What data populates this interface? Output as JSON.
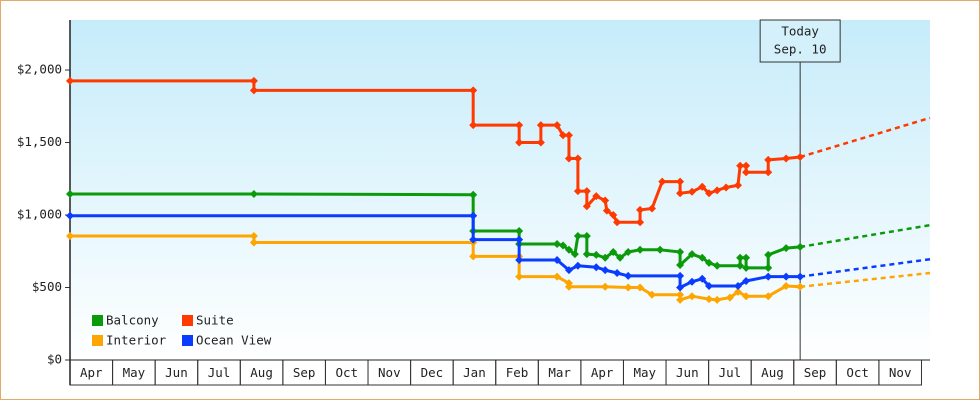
{
  "chart_data": {
    "type": "line",
    "step": true,
    "xlim": [
      0,
      20.2
    ],
    "ylim": [
      0,
      2345
    ],
    "yticks": [
      {
        "value": 0,
        "label": "$0"
      },
      {
        "value": 500,
        "label": "$500"
      },
      {
        "value": 1000,
        "label": "$1,000"
      },
      {
        "value": 1500,
        "label": "$1,500"
      },
      {
        "value": 2000,
        "label": "$2,000"
      }
    ],
    "xticks": [
      {
        "value": 0.5,
        "label": "Apr"
      },
      {
        "value": 1.5,
        "label": "May"
      },
      {
        "value": 2.5,
        "label": "Jun"
      },
      {
        "value": 3.5,
        "label": "Jul"
      },
      {
        "value": 4.5,
        "label": "Aug"
      },
      {
        "value": 5.5,
        "label": "Sep"
      },
      {
        "value": 6.5,
        "label": "Oct"
      },
      {
        "value": 7.5,
        "label": "Nov"
      },
      {
        "value": 8.5,
        "label": "Dec"
      },
      {
        "value": 9.5,
        "label": "Jan"
      },
      {
        "value": 10.5,
        "label": "Feb"
      },
      {
        "value": 11.5,
        "label": "Mar"
      },
      {
        "value": 12.5,
        "label": "Apr"
      },
      {
        "value": 13.5,
        "label": "May"
      },
      {
        "value": 14.5,
        "label": "Jun"
      },
      {
        "value": 15.5,
        "label": "Jul"
      },
      {
        "value": 16.5,
        "label": "Aug"
      },
      {
        "value": 17.5,
        "label": "Sep"
      },
      {
        "value": 18.5,
        "label": "Oct"
      },
      {
        "value": 19.5,
        "label": "Nov"
      }
    ],
    "annotation": {
      "x": 17.15,
      "lines": [
        "Today",
        "Sep. 10"
      ]
    },
    "legend": "bottom-left",
    "series": [
      {
        "name": "Balcony",
        "color": "#0a9a0a",
        "x": [
          0,
          4.32,
          9.47,
          9.47,
          10.55,
          10.55,
          11.44,
          11.58,
          11.72,
          11.86,
          11.93,
          12.14,
          12.14,
          12.36,
          12.57,
          12.76,
          12.92,
          13.11,
          13.39,
          13.86,
          14.33,
          14.33,
          14.61,
          14.85,
          15.01,
          15.2,
          15.74,
          15.74,
          15.88,
          15.88,
          16.4,
          16.4,
          16.82,
          17.15
        ],
        "values": [
          1145,
          1145,
          1140,
          890,
          890,
          800,
          800,
          790,
          760,
          730,
          855,
          855,
          730,
          725,
          705,
          745,
          705,
          745,
          760,
          760,
          745,
          655,
          730,
          705,
          670,
          650,
          650,
          705,
          705,
          635,
          635,
          725,
          772,
          780
        ],
        "forecast_x": [
          17.15,
          20.2
        ],
        "forecast_values": [
          780,
          930
        ]
      },
      {
        "name": "Suite",
        "color": "#ff3a00",
        "x": [
          0,
          4.32,
          4.32,
          9.47,
          9.47,
          10.55,
          10.55,
          11.06,
          11.06,
          11.44,
          11.58,
          11.72,
          11.72,
          11.93,
          11.93,
          12.14,
          12.14,
          12.36,
          12.57,
          12.61,
          12.76,
          12.85,
          13.39,
          13.39,
          13.67,
          13.91,
          14.33,
          14.33,
          14.61,
          14.85,
          15.01,
          15.2,
          15.41,
          15.69,
          15.74,
          15.88,
          15.88,
          16.4,
          16.4,
          16.82,
          17.15
        ],
        "values": [
          1925,
          1925,
          1860,
          1860,
          1620,
          1620,
          1500,
          1500,
          1620,
          1620,
          1550,
          1550,
          1390,
          1390,
          1165,
          1165,
          1060,
          1130,
          1100,
          1030,
          1000,
          950,
          950,
          1035,
          1045,
          1230,
          1230,
          1150,
          1160,
          1195,
          1150,
          1170,
          1190,
          1205,
          1340,
          1340,
          1295,
          1295,
          1380,
          1390,
          1400
        ],
        "forecast_x": [
          17.15,
          20.2
        ],
        "forecast_values": [
          1400,
          1670
        ]
      },
      {
        "name": "Interior",
        "color": "#ffa500",
        "x": [
          0,
          4.32,
          4.32,
          9.47,
          9.47,
          10.55,
          10.55,
          11.44,
          11.72,
          11.72,
          12.57,
          13.11,
          13.39,
          13.67,
          14.33,
          14.33,
          14.61,
          15.01,
          15.2,
          15.5,
          15.69,
          15.88,
          16.4,
          16.82,
          17.15
        ],
        "values": [
          855,
          855,
          810,
          810,
          715,
          715,
          575,
          575,
          530,
          505,
          505,
          500,
          500,
          450,
          450,
          415,
          440,
          420,
          415,
          430,
          470,
          440,
          440,
          510,
          505
        ],
        "forecast_x": [
          17.15,
          20.2
        ],
        "forecast_values": [
          505,
          600
        ]
      },
      {
        "name": "Ocean View",
        "color": "#0a3cff",
        "x": [
          0,
          9.47,
          9.47,
          10.55,
          10.55,
          11.44,
          11.72,
          11.93,
          12.36,
          12.57,
          12.85,
          13.11,
          14.33,
          14.33,
          14.61,
          14.85,
          15.01,
          15.69,
          15.88,
          16.4,
          16.82,
          17.15
        ],
        "values": [
          995,
          995,
          830,
          830,
          690,
          690,
          620,
          650,
          640,
          620,
          600,
          580,
          580,
          500,
          540,
          560,
          510,
          510,
          545,
          575,
          575,
          575
        ],
        "forecast_x": [
          17.15,
          20.2
        ],
        "forecast_values": [
          575,
          695
        ]
      }
    ]
  }
}
